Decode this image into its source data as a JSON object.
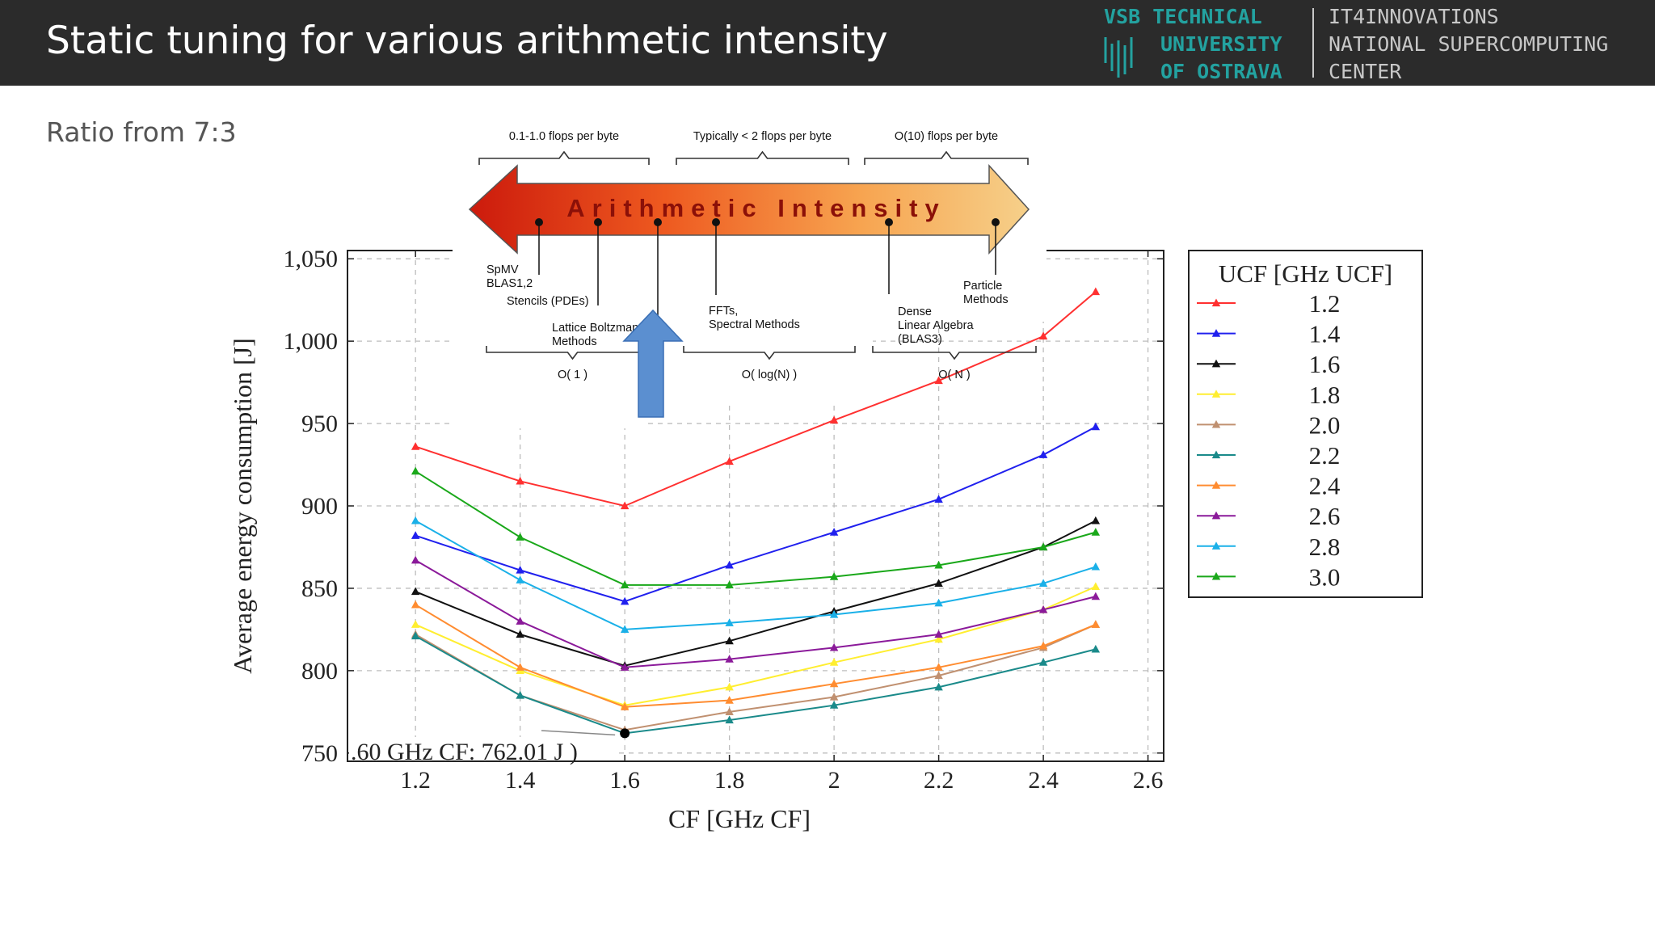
{
  "slide": {
    "title": "Static tuning for various arithmetic intensity",
    "subtitle": "Ratio from 7:3"
  },
  "logo": {
    "left_lines": [
      "VSB TECHNICAL",
      "UNIVERSITY",
      "OF OSTRAVA"
    ],
    "right_lines": [
      "IT4INNOVATIONS",
      "NATIONAL SUPERCOMPUTING",
      "CENTER"
    ],
    "colors": {
      "left": "#23a2a0",
      "right": "#c8c8c8",
      "divider": "#c8c8c8"
    }
  },
  "chart_data": {
    "type": "line",
    "xlabel": "CF [GHz CF]",
    "ylabel": "Average energy consumption [J]",
    "x": [
      1.2,
      1.4,
      1.6,
      1.8,
      2.0,
      2.2,
      2.4,
      2.5
    ],
    "xlim": [
      1.07,
      2.63
    ],
    "ylim": [
      745,
      1055
    ],
    "x_ticks": [
      1.2,
      1.4,
      1.6,
      1.8,
      2.0,
      2.2,
      2.4,
      2.6
    ],
    "x_tick_labels": [
      "1.2",
      "1.4",
      "1.6",
      "1.8",
      "2",
      "2.2",
      "2.4",
      "2.6"
    ],
    "y_ticks": [
      750,
      800,
      850,
      900,
      950,
      1000,
      1050
    ],
    "y_tick_labels": [
      "750",
      "800",
      "850",
      "900",
      "950",
      "1,000",
      "1,050"
    ],
    "grid": true,
    "legend_title": "UCF [GHz UCF]",
    "legend_position": "right",
    "series": [
      {
        "name": "1.2",
        "color": "#ff3030",
        "values": [
          936,
          915,
          900,
          927,
          952,
          976,
          1003,
          1030
        ]
      },
      {
        "name": "1.4",
        "color": "#2020ee",
        "values": [
          882,
          861,
          842,
          864,
          884,
          904,
          931,
          948
        ]
      },
      {
        "name": "1.6",
        "color": "#111111",
        "values": [
          848,
          822,
          803,
          818,
          836,
          853,
          875,
          891
        ]
      },
      {
        "name": "1.8",
        "color": "#ffee30",
        "values": [
          828,
          800,
          779,
          790,
          805,
          819,
          837,
          851
        ]
      },
      {
        "name": "2.0",
        "color": "#c09070",
        "values": [
          822,
          785,
          764,
          775,
          784,
          797,
          814,
          828
        ]
      },
      {
        "name": "2.2",
        "color": "#1a8a8a",
        "values": [
          821,
          785,
          762,
          770,
          779,
          790,
          805,
          813
        ]
      },
      {
        "name": "2.4",
        "color": "#ff8c30",
        "values": [
          840,
          802,
          778,
          782,
          792,
          802,
          815,
          828
        ]
      },
      {
        "name": "2.6",
        "color": "#8b1a9a",
        "values": [
          867,
          830,
          802,
          807,
          814,
          822,
          837,
          845
        ]
      },
      {
        "name": "2.8",
        "color": "#1ab0e8",
        "values": [
          891,
          855,
          825,
          829,
          834,
          841,
          853,
          863
        ]
      },
      {
        "name": "3.0",
        "color": "#1aa81a",
        "values": [
          921,
          881,
          852,
          852,
          857,
          864,
          875,
          884
        ]
      }
    ],
    "min_marker": {
      "x": 1.6,
      "y": 762
    },
    "annotation": ".60 GHz CF: 762.01 J )"
  },
  "overlay": {
    "arrow_text": "Arithmetic Intensity",
    "top_labels": [
      "0.1-1.0 flops per byte",
      "Typically < 2 flops per byte",
      "O(10) flops per byte"
    ],
    "kernels": [
      {
        "lines": [
          "SpMV",
          "BLAS1,2"
        ]
      },
      {
        "lines": [
          "Stencils (PDEs)"
        ]
      },
      {
        "lines": [
          "Lattice Boltzmann",
          "Methods"
        ]
      },
      {
        "lines": [
          "FFTs,",
          "Spectral Methods"
        ]
      },
      {
        "lines": [
          "Dense",
          "Linear Algebra",
          "(BLAS3)"
        ]
      },
      {
        "lines": [
          "Particle",
          "Methods"
        ]
      }
    ],
    "bottom_labels": [
      "O( 1 )",
      "O( log(N) )",
      "O( N )"
    ],
    "pointer_color": "#5b8fd0"
  }
}
